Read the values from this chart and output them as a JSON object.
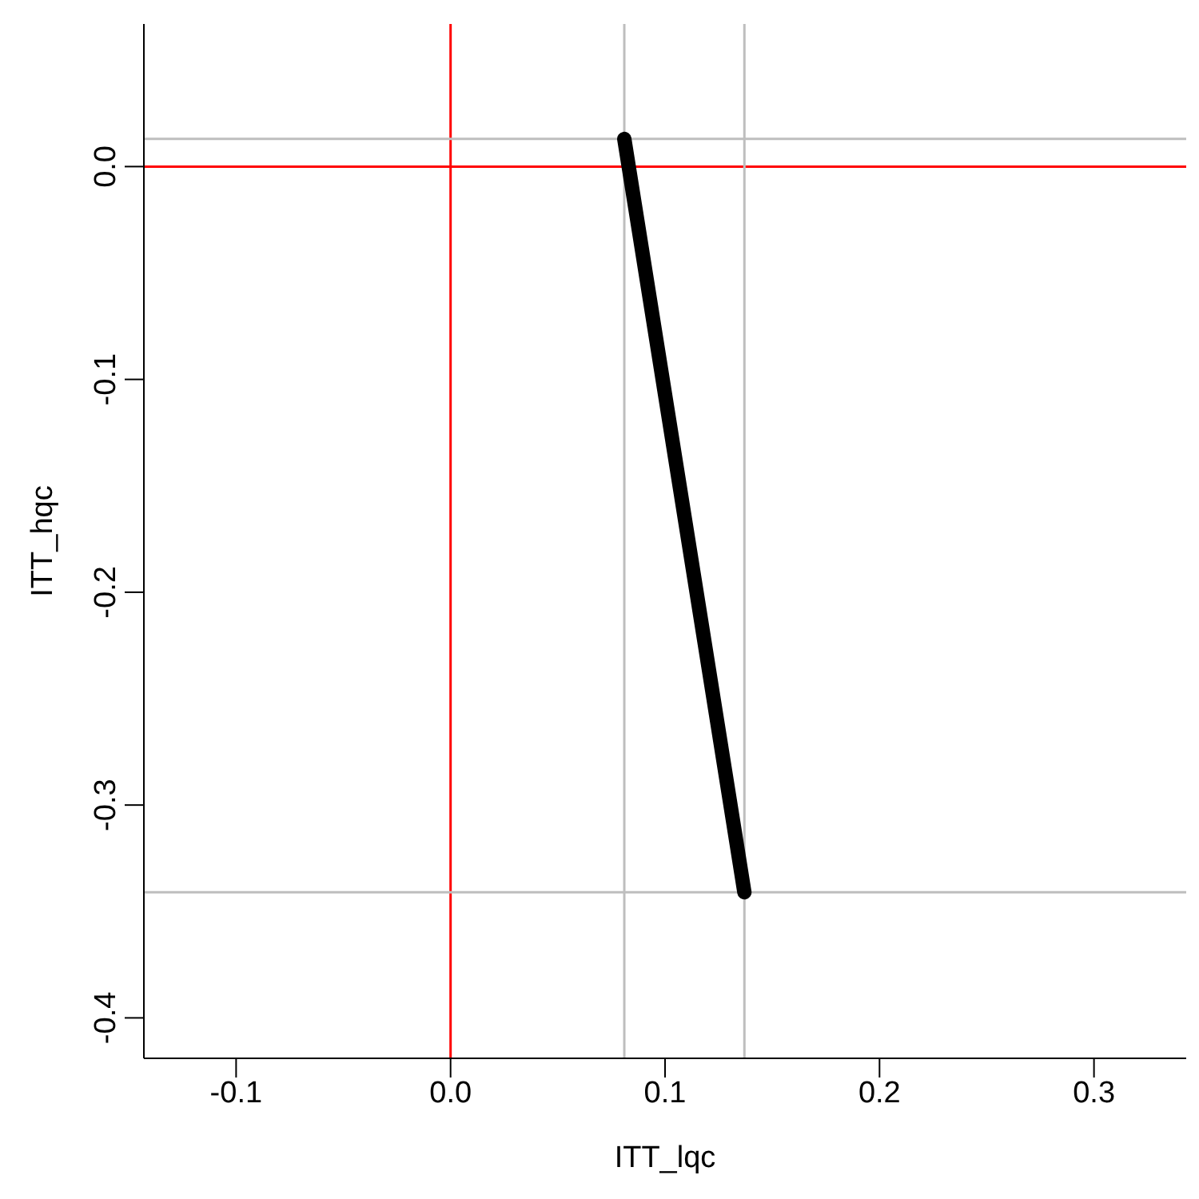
{
  "chart_data": {
    "type": "line",
    "xlabel": "ITT_lqc",
    "ylabel": "ITT_hqc",
    "x": [
      0.081,
      0.137
    ],
    "series": [
      {
        "color": "#000000",
        "values": [
          0.013,
          -0.341
        ]
      }
    ],
    "xlim": [
      -0.143,
      0.343
    ],
    "ylim": [
      -0.419,
      0.067
    ],
    "xticks": [
      -0.1,
      {
        "value": 0,
        "label": "0.0"
      },
      0.1,
      0.2,
      0.3
    ],
    "yticks": [
      {
        "value": 0,
        "label": "0.0"
      },
      -0.1,
      -0.2,
      -0.3,
      -0.4
    ],
    "ref_lines": [
      {
        "axis": "x",
        "value": 0,
        "color": "#ff0000"
      },
      {
        "axis": "y",
        "value": 0,
        "color": "#ff0000"
      },
      {
        "axis": "x",
        "value": 0.081,
        "color": "#bebebe"
      },
      {
        "axis": "x",
        "value": 0.137,
        "color": "#bebebe"
      },
      {
        "axis": "y",
        "value": 0.013,
        "color": "#bebebe"
      },
      {
        "axis": "y",
        "value": -0.341,
        "color": "#bebebe"
      }
    ],
    "marker": "none",
    "line_style": "solid",
    "grid": false
  }
}
